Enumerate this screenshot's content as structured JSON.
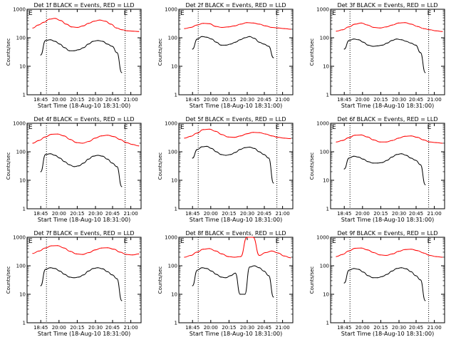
{
  "chart_data": [
    {
      "type": "line",
      "title": "Det 1f BLACK = Events, RED = LLD",
      "ylabel": "Counts/sec",
      "xlabel": "Start Time (18-Aug-10 18:31:00)",
      "x_ticks": [
        "18:45",
        "20:00",
        "20:15",
        "20:30",
        "20:45",
        "21:00"
      ],
      "y_ticks": [
        "1",
        "10",
        "100",
        "1000"
      ],
      "ylim": [
        1,
        1000
      ],
      "yscale": "log",
      "markers": [
        "E",
        "E"
      ],
      "series": [
        {
          "color": "#ff0000",
          "values": [
            220,
            280,
            350,
            450,
            480,
            400,
            300,
            240,
            230,
            260,
            320,
            380,
            420,
            380,
            300,
            220,
            190,
            175,
            170,
            165
          ]
        },
        {
          "color": "#000000",
          "values": [
            25,
            80,
            85,
            75,
            60,
            45,
            35,
            35,
            38,
            45,
            60,
            75,
            80,
            75,
            60,
            50,
            30,
            6
          ]
        }
      ]
    },
    {
      "type": "line",
      "title": "Det 2f BLACK = Events, RED = LLD",
      "ylabel": "Counts/sec",
      "xlabel": "Start Time (18-Aug-10 18:31:00)",
      "x_ticks": [
        "18:45",
        "20:00",
        "20:15",
        "20:30",
        "20:45",
        "21:00"
      ],
      "y_ticks": [
        "1",
        "10",
        "100",
        "1000"
      ],
      "ylim": [
        1,
        1000
      ],
      "yscale": "log",
      "markers": [
        "E",
        "E"
      ],
      "series": [
        {
          "color": "#ff0000",
          "values": [
            210,
            230,
            280,
            320,
            310,
            250,
            230,
            240,
            260,
            300,
            340,
            330,
            300,
            260,
            230,
            220,
            210,
            200
          ]
        },
        {
          "color": "#000000",
          "values": [
            40,
            90,
            110,
            105,
            90,
            70,
            55,
            55,
            60,
            70,
            85,
            100,
            110,
            95,
            70,
            60,
            50,
            20
          ]
        }
      ]
    },
    {
      "type": "line",
      "title": "Det 3f BLACK = Events, RED = LLD",
      "ylabel": "Counts/sec",
      "xlabel": "Start Time (18-Aug-10 18:31:00)",
      "x_ticks": [
        "18:45",
        "20:00",
        "20:15",
        "20:30",
        "20:45",
        "21:00"
      ],
      "y_ticks": [
        "1",
        "10",
        "100",
        "1000"
      ],
      "ylim": [
        1,
        1000
      ],
      "yscale": "log",
      "markers": [
        "E",
        "E"
      ],
      "series": [
        {
          "color": "#ff0000",
          "values": [
            170,
            190,
            240,
            300,
            330,
            280,
            230,
            220,
            240,
            280,
            330,
            340,
            300,
            250,
            210,
            190,
            175,
            165
          ]
        },
        {
          "color": "#000000",
          "values": [
            40,
            80,
            90,
            85,
            70,
            55,
            50,
            52,
            55,
            65,
            80,
            90,
            85,
            75,
            65,
            55,
            30,
            6
          ]
        }
      ]
    },
    {
      "type": "line",
      "title": "Det 4f BLACK = Events, RED = LLD",
      "ylabel": "Counts/sec",
      "xlabel": "Start Time (18-Aug-10 18:31:00)",
      "x_ticks": [
        "18:45",
        "20:00",
        "20:15",
        "20:30",
        "20:45",
        "21:00"
      ],
      "y_ticks": [
        "1",
        "10",
        "100",
        "1000"
      ],
      "ylim": [
        1,
        1000
      ],
      "yscale": "log",
      "markers": [
        "E",
        "E"
      ],
      "series": [
        {
          "color": "#ff0000",
          "values": [
            200,
            250,
            330,
            410,
            420,
            360,
            270,
            210,
            200,
            230,
            300,
            360,
            380,
            340,
            270,
            210,
            180,
            160
          ]
        },
        {
          "color": "#000000",
          "values": [
            20,
            80,
            85,
            75,
            60,
            45,
            35,
            30,
            32,
            40,
            55,
            70,
            75,
            70,
            55,
            40,
            30,
            6
          ]
        }
      ]
    },
    {
      "type": "line",
      "title": "Det 5f BLACK = Events, RED = LLD",
      "ylabel": "Counts/sec",
      "xlabel": "Start Time (18-Aug-10 18:31:00)",
      "x_ticks": [
        "18:45",
        "20:00",
        "20:15",
        "20:30",
        "20:45",
        "21:00"
      ],
      "y_ticks": [
        "1",
        "10",
        "100",
        "1000"
      ],
      "ylim": [
        1,
        1000
      ],
      "yscale": "log",
      "markers": [
        "E",
        "E"
      ],
      "series": [
        {
          "color": "#ff0000",
          "values": [
            300,
            350,
            450,
            600,
            620,
            520,
            400,
            330,
            320,
            360,
            430,
            480,
            470,
            420,
            360,
            320,
            300,
            290
          ]
        },
        {
          "color": "#000000",
          "values": [
            60,
            120,
            150,
            155,
            130,
            100,
            80,
            75,
            80,
            95,
            120,
            140,
            145,
            130,
            100,
            80,
            60,
            8
          ]
        }
      ]
    },
    {
      "type": "line",
      "title": "Det 6f BLACK = Events, RED = LLD",
      "ylabel": "Counts/sec",
      "xlabel": "Start Time (18-Aug-10 18:31:00)",
      "x_ticks": [
        "18:45",
        "20:00",
        "20:15",
        "20:30",
        "20:45",
        "21:00"
      ],
      "y_ticks": [
        "1",
        "10",
        "100",
        "1000"
      ],
      "ylim": [
        1,
        1000
      ],
      "yscale": "log",
      "markers": [
        "E",
        "E"
      ],
      "series": [
        {
          "color": "#ff0000",
          "values": [
            220,
            250,
            310,
            380,
            390,
            330,
            260,
            220,
            220,
            250,
            300,
            350,
            360,
            320,
            260,
            220,
            210,
            200
          ]
        },
        {
          "color": "#000000",
          "values": [
            25,
            60,
            70,
            65,
            55,
            45,
            40,
            40,
            42,
            50,
            65,
            80,
            85,
            75,
            60,
            50,
            35,
            7
          ]
        }
      ]
    },
    {
      "type": "line",
      "title": "Det 7f BLACK = Events, RED = LLD",
      "ylabel": "Counts/sec",
      "xlabel": "Start Time (18-Aug-10 18:31:00)",
      "x_ticks": [
        "18:45",
        "20:00",
        "20:15",
        "20:30",
        "20:45",
        "21:00"
      ],
      "y_ticks": [
        "1",
        "10",
        "100",
        "1000"
      ],
      "ylim": [
        1,
        1000
      ],
      "yscale": "log",
      "markers": [
        "E",
        "E"
      ],
      "series": [
        {
          "color": "#ff0000",
          "values": [
            270,
            330,
            420,
            500,
            510,
            420,
            320,
            260,
            250,
            290,
            360,
            420,
            430,
            380,
            300,
            250,
            240,
            260
          ]
        },
        {
          "color": "#000000",
          "values": [
            20,
            75,
            85,
            80,
            65,
            50,
            40,
            38,
            40,
            48,
            65,
            80,
            85,
            78,
            62,
            48,
            35,
            6
          ]
        }
      ]
    },
    {
      "type": "line",
      "title": "Det 8f BLACK = Events, RED = LLD",
      "ylabel": "Counts/sec",
      "xlabel": "Start Time (18-Aug-10 18:31:00)",
      "x_ticks": [
        "18:45",
        "20:00",
        "20:15",
        "20:30",
        "20:45",
        "21:00"
      ],
      "y_ticks": [
        "1",
        "10",
        "100",
        "1000"
      ],
      "ylim": [
        1,
        1000
      ],
      "yscale": "log",
      "markers": [
        "E",
        "E"
      ],
      "series": [
        {
          "color": "#ff0000",
          "values": [
            200,
            230,
            300,
            380,
            400,
            330,
            260,
            210,
            200,
            210,
            1000,
            1000,
            230,
            290,
            330,
            280,
            220,
            190
          ]
        },
        {
          "color": "#000000",
          "values": [
            20,
            70,
            85,
            80,
            65,
            50,
            40,
            38,
            45,
            55,
            10,
            10,
            90,
            100,
            85,
            65,
            45,
            8
          ]
        }
      ]
    },
    {
      "type": "line",
      "title": "Det 9f BLACK = Events, RED = LLD",
      "ylabel": "Counts/sec",
      "xlabel": "Start Time (18-Aug-10 18:31:00)",
      "x_ticks": [
        "18:45",
        "20:00",
        "20:15",
        "20:30",
        "20:45",
        "21:00"
      ],
      "y_ticks": [
        "1",
        "10",
        "100",
        "1000"
      ],
      "ylim": [
        1,
        1000
      ],
      "yscale": "log",
      "markers": [
        "E",
        "E"
      ],
      "series": [
        {
          "color": "#ff0000",
          "values": [
            210,
            250,
            330,
            410,
            420,
            360,
            290,
            240,
            230,
            260,
            320,
            370,
            380,
            340,
            280,
            230,
            210,
            200
          ]
        },
        {
          "color": "#000000",
          "values": [
            25,
            70,
            80,
            75,
            60,
            45,
            38,
            38,
            42,
            50,
            65,
            80,
            85,
            78,
            62,
            45,
            32,
            6
          ]
        }
      ]
    }
  ]
}
